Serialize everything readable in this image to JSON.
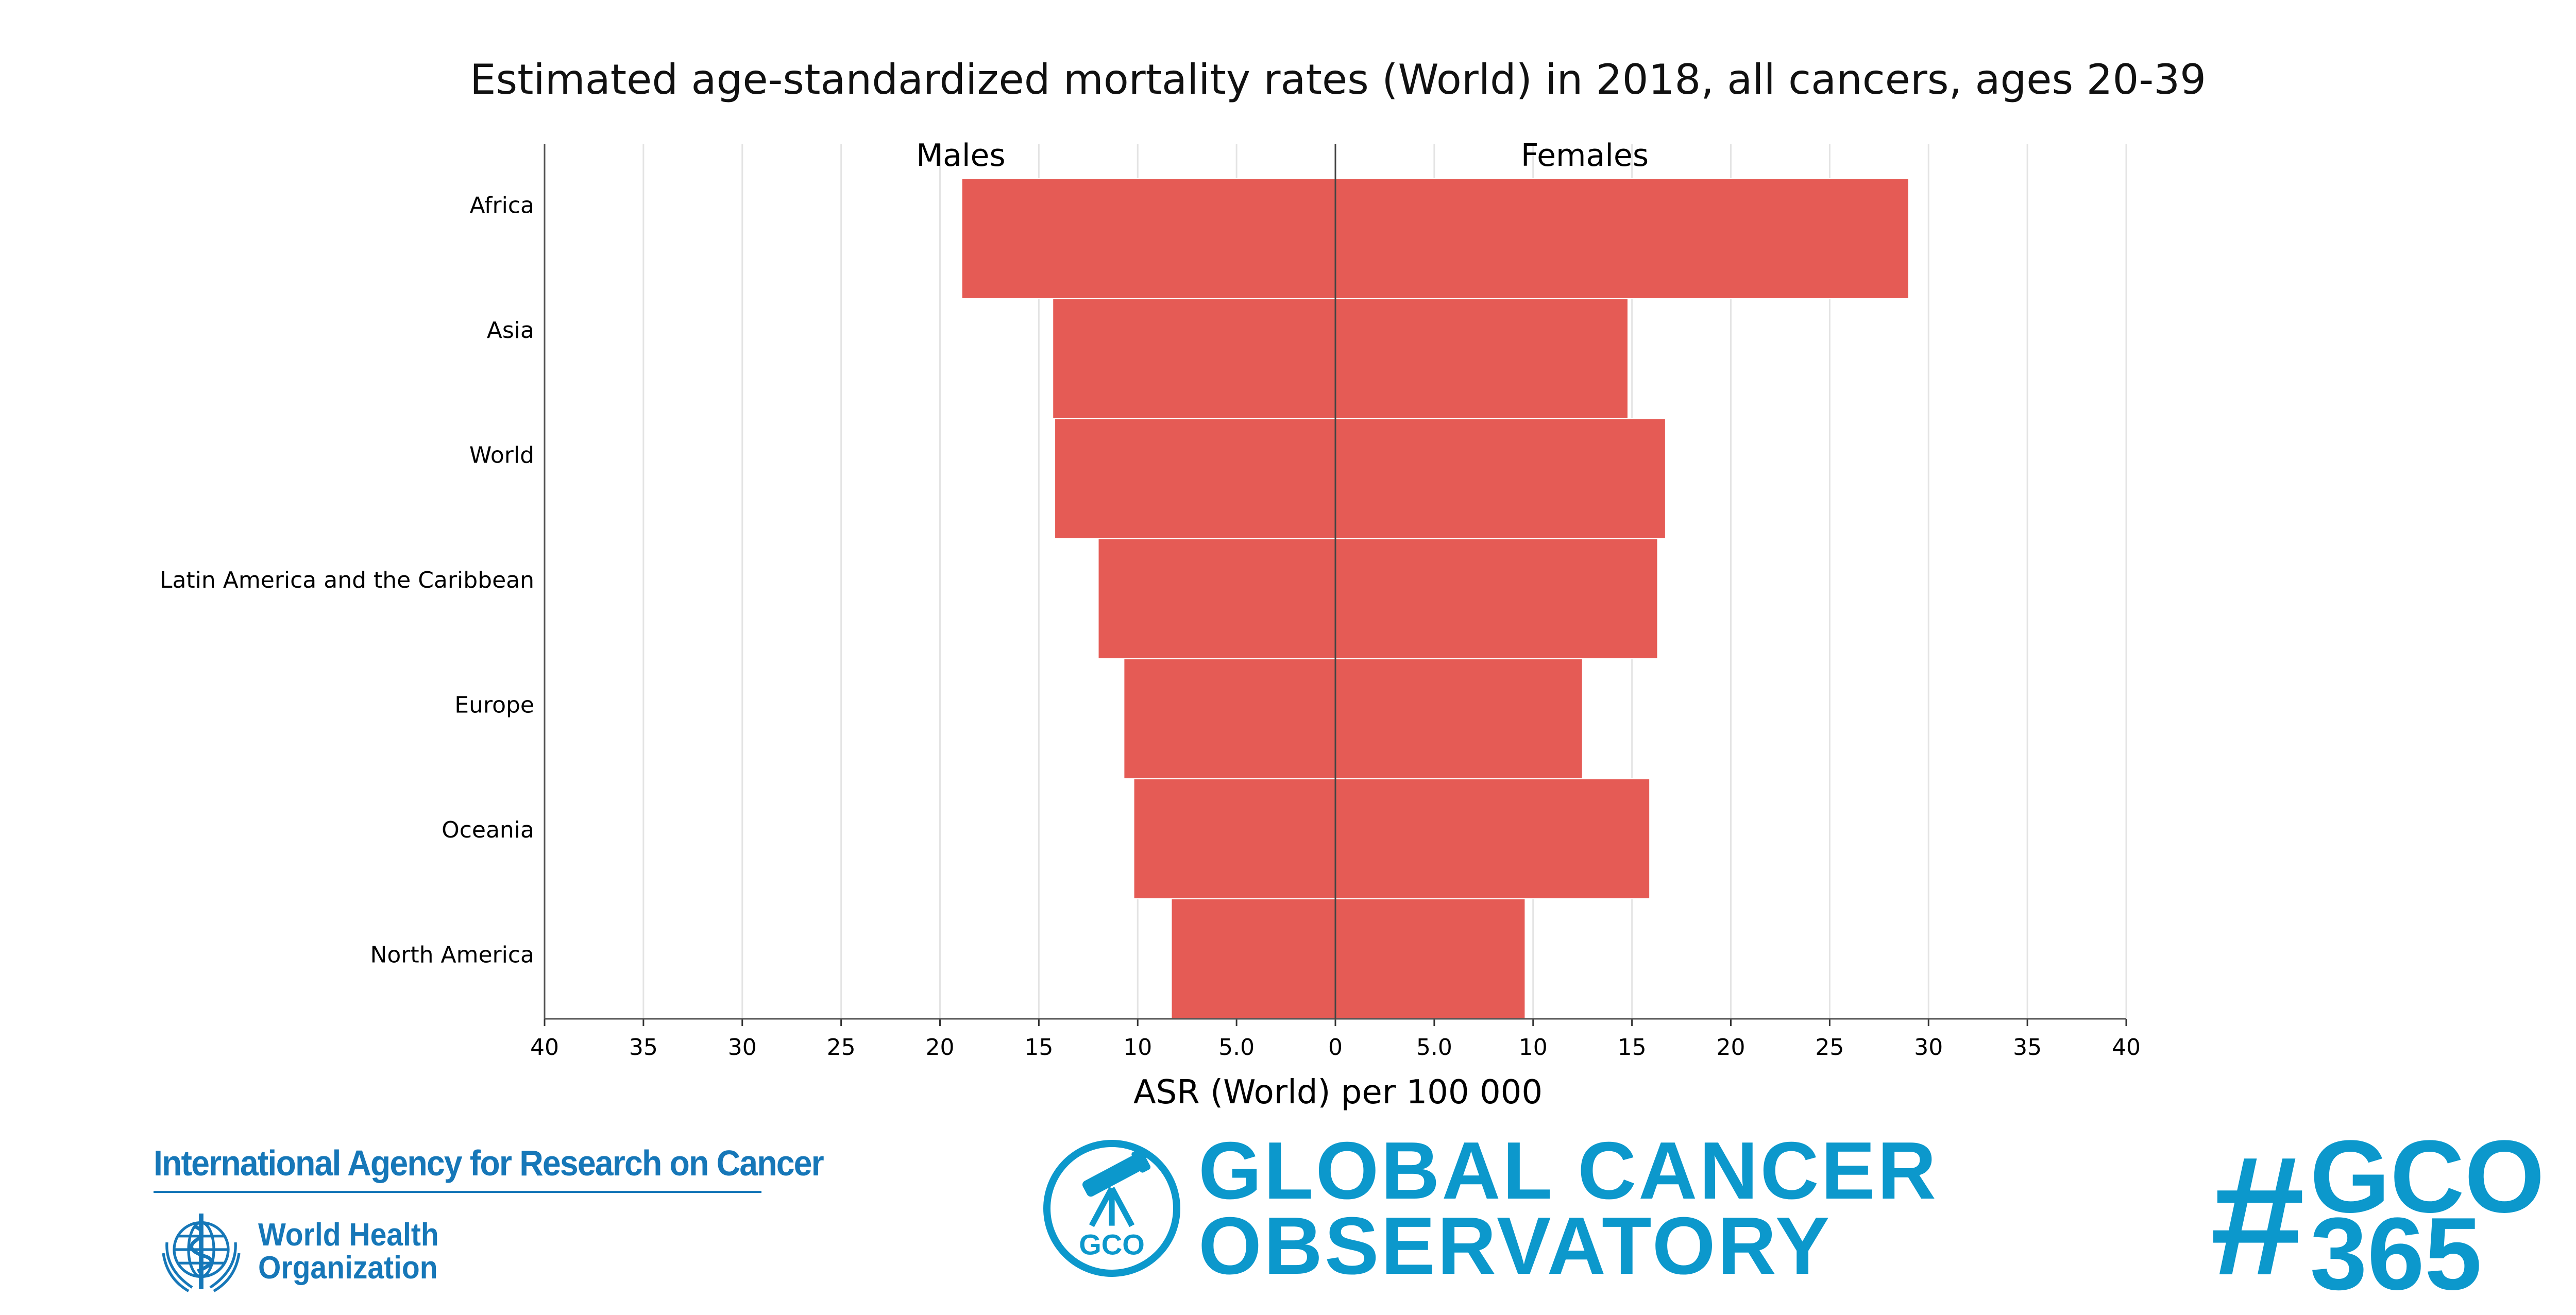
{
  "chart_data": {
    "type": "bar",
    "orientation": "horizontal-population-pyramid",
    "title": "Estimated age-standardized mortality rates (World) in 2018, all cancers, ages 20-39",
    "xlabel": "ASR (World) per 100 000",
    "ylabel": "",
    "xlim": [
      -40,
      40
    ],
    "x_ticks": [
      "40",
      "35",
      "30",
      "25",
      "20",
      "15",
      "10",
      "5.0",
      "0",
      "5.0",
      "10",
      "15",
      "20",
      "25",
      "30",
      "35",
      "40"
    ],
    "categories": [
      "Africa",
      "Asia",
      "World",
      "Latin America and the Caribbean",
      "Europe",
      "Oceania",
      "North America"
    ],
    "series": [
      {
        "name": "Males",
        "side": "left",
        "values": [
          18.9,
          14.3,
          14.2,
          12.0,
          10.7,
          10.2,
          8.3
        ]
      },
      {
        "name": "Females",
        "side": "right",
        "values": [
          29.0,
          14.8,
          16.7,
          16.3,
          12.5,
          15.9,
          9.6
        ]
      }
    ],
    "bar_color": "#e55b55",
    "grid": true
  },
  "footer": {
    "iarc": "International Agency for Research on Cancer",
    "who_line1": "World Health",
    "who_line2": "Organization",
    "gco_badge": "GCO",
    "gco_line1": "GLOBAL CANCER",
    "gco_line2": "OBSERVATORY",
    "hashtag_symbol": "#",
    "hashtag_line1": "GCO",
    "hashtag_line2": "365"
  }
}
